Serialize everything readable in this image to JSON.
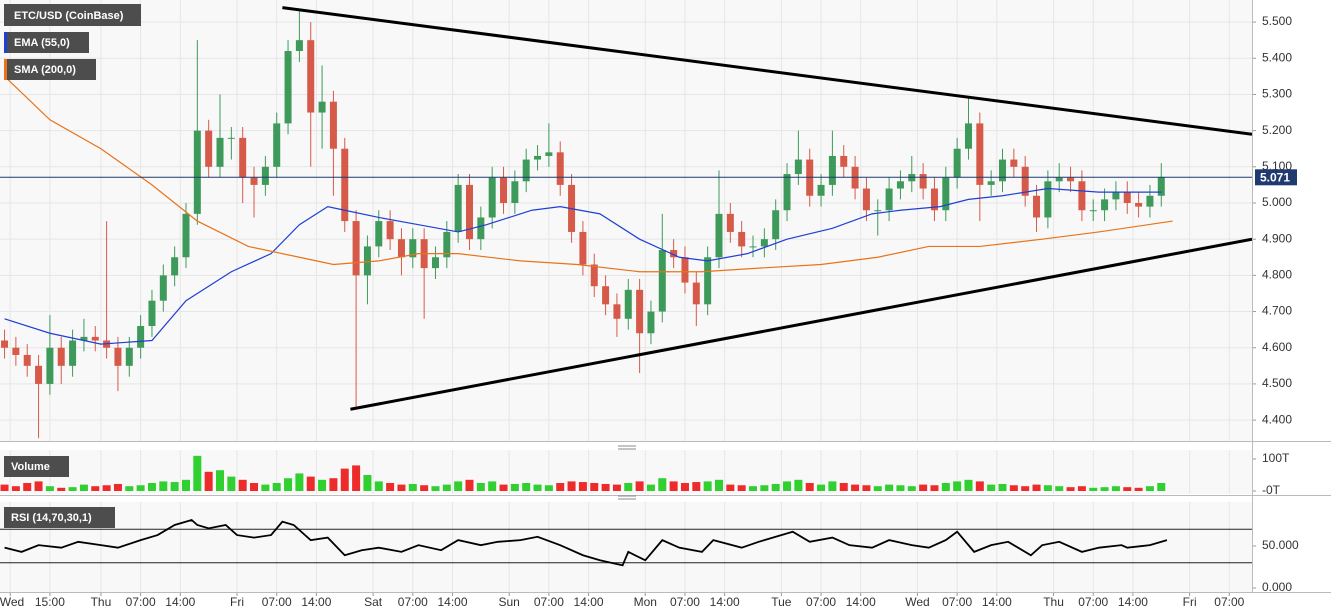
{
  "chart_data": [
    {
      "type": "candlestick",
      "title": "ETC/USD (CoinBase)",
      "xlim": [
        -17.8,
        203
      ],
      "ylim": [
        4.345,
        5.561
      ],
      "yticks": [
        {
          "value": 4.4,
          "label": "4.400"
        },
        {
          "value": 4.5,
          "label": "4.500"
        },
        {
          "value": 4.6,
          "label": "4.600"
        },
        {
          "value": 4.7,
          "label": "4.700"
        },
        {
          "value": 4.8,
          "label": "4.800"
        },
        {
          "value": 4.9,
          "label": "4.900"
        },
        {
          "value": 5.0,
          "label": "5.000"
        },
        {
          "value": 5.1,
          "label": "5.100"
        },
        {
          "value": 5.2,
          "label": "5.200"
        },
        {
          "value": 5.3,
          "label": "5.300"
        },
        {
          "value": 5.4,
          "label": "5.400"
        },
        {
          "value": 5.5,
          "label": "5.500"
        }
      ],
      "grid": true,
      "up_color": "#3d9a5b",
      "down_color": "#d65a4a",
      "x": [
        -17,
        -15,
        -13,
        -11,
        -9,
        -7,
        -5,
        -3,
        -1,
        1,
        3,
        5,
        7,
        9,
        11,
        13,
        15,
        17,
        19,
        21,
        23,
        25,
        27,
        29,
        31,
        33,
        35,
        37,
        39,
        41,
        43,
        45,
        47,
        49,
        51,
        53,
        55,
        57,
        59,
        61,
        63,
        65,
        67,
        69,
        71,
        73,
        75,
        77,
        79,
        81,
        83,
        85,
        87,
        89,
        91,
        93,
        95,
        97,
        99,
        101,
        103,
        105,
        107,
        109,
        111,
        113,
        115,
        117,
        119,
        121,
        123,
        125,
        127,
        129,
        131,
        133,
        135,
        137,
        139,
        141,
        143,
        145,
        147,
        149,
        151,
        153,
        155,
        157,
        159,
        161,
        163,
        165,
        167,
        169,
        171,
        173,
        175,
        177,
        179,
        181,
        183,
        185,
        187
      ],
      "open": [
        4.62,
        4.6,
        4.58,
        4.55,
        4.5,
        4.6,
        4.55,
        4.62,
        4.63,
        4.62,
        4.6,
        4.55,
        4.6,
        4.66,
        4.73,
        4.8,
        4.85,
        4.97,
        5.2,
        5.1,
        5.18,
        5.18,
        5.07,
        5.05,
        5.1,
        5.22,
        5.42,
        5.45,
        5.25,
        5.28,
        5.15,
        4.95,
        4.8,
        4.88,
        4.95,
        4.9,
        4.85,
        4.9,
        4.82,
        4.85,
        4.92,
        5.05,
        4.9,
        4.96,
        5.07,
        5.0,
        5.06,
        5.12,
        5.13,
        5.14,
        5.05,
        4.92,
        4.83,
        4.77,
        4.72,
        4.68,
        4.76,
        4.64,
        4.7,
        4.87,
        4.85,
        4.78,
        4.72,
        4.85,
        4.97,
        4.92,
        4.88,
        4.88,
        4.9,
        4.98,
        5.08,
        5.12,
        5.02,
        5.05,
        5.13,
        5.1,
        5.04,
        4.98,
        4.98,
        5.04,
        5.06,
        5.08,
        5.04,
        4.98,
        5.07,
        5.15,
        5.22,
        5.05,
        5.06,
        5.12,
        5.1,
        5.02,
        4.96,
        5.06,
        5.07,
        5.06,
        4.98,
        4.98,
        5.01,
        5.03,
        5.0,
        4.99,
        5.02
      ],
      "high": [
        4.65,
        4.63,
        4.61,
        4.58,
        4.69,
        4.63,
        4.65,
        4.68,
        4.66,
        4.95,
        4.63,
        4.63,
        4.69,
        4.76,
        4.83,
        4.88,
        5.0,
        5.45,
        5.23,
        5.3,
        5.21,
        5.21,
        5.1,
        5.13,
        5.25,
        5.45,
        5.53,
        5.5,
        5.38,
        5.31,
        5.18,
        4.98,
        4.91,
        4.98,
        4.98,
        4.93,
        4.93,
        4.93,
        4.88,
        4.95,
        5.08,
        5.08,
        4.99,
        5.1,
        5.1,
        5.09,
        5.15,
        5.16,
        5.22,
        5.17,
        5.08,
        4.95,
        4.86,
        4.8,
        4.75,
        4.79,
        4.79,
        4.73,
        4.97,
        4.9,
        4.88,
        4.81,
        4.88,
        5.09,
        5.0,
        4.95,
        4.91,
        4.93,
        5.01,
        5.11,
        5.2,
        5.15,
        5.08,
        5.2,
        5.16,
        5.13,
        5.07,
        5.01,
        5.07,
        5.09,
        5.13,
        5.11,
        5.07,
        5.1,
        5.18,
        5.29,
        5.25,
        5.09,
        5.15,
        5.15,
        5.13,
        5.05,
        5.09,
        5.11,
        5.1,
        5.09,
        5.01,
        5.04,
        5.06,
        5.06,
        5.03,
        5.05,
        5.11
      ],
      "low": [
        4.57,
        4.55,
        4.52,
        4.35,
        4.47,
        4.5,
        4.52,
        4.59,
        4.59,
        4.57,
        4.48,
        4.52,
        4.57,
        4.63,
        4.7,
        4.77,
        4.82,
        4.94,
        5.07,
        5.07,
        5.12,
        5.0,
        4.96,
        5.02,
        5.07,
        5.19,
        5.39,
        5.1,
        5.15,
        5.02,
        4.92,
        4.43,
        4.72,
        4.85,
        4.87,
        4.8,
        4.82,
        4.68,
        4.79,
        4.82,
        4.89,
        4.87,
        4.87,
        4.93,
        4.97,
        4.97,
        5.03,
        5.09,
        5.1,
        5.02,
        4.89,
        4.8,
        4.74,
        4.69,
        4.63,
        4.65,
        4.53,
        4.61,
        4.67,
        4.82,
        4.75,
        4.66,
        4.69,
        4.82,
        4.89,
        4.85,
        4.85,
        4.85,
        4.87,
        4.95,
        5.05,
        4.99,
        4.99,
        5.02,
        5.07,
        5.01,
        4.95,
        4.91,
        4.95,
        5.01,
        5.03,
        5.01,
        4.95,
        4.95,
        5.04,
        5.12,
        4.95,
        5.02,
        5.03,
        5.07,
        4.99,
        4.92,
        4.93,
        5.03,
        5.03,
        4.95,
        4.95,
        4.95,
        4.98,
        4.97,
        4.96,
        4.96,
        4.99
      ],
      "close": [
        4.6,
        4.58,
        4.55,
        4.5,
        4.6,
        4.55,
        4.62,
        4.63,
        4.62,
        4.6,
        4.55,
        4.6,
        4.66,
        4.73,
        4.8,
        4.85,
        4.97,
        5.2,
        5.1,
        5.18,
        5.18,
        5.07,
        5.05,
        5.1,
        5.22,
        5.42,
        5.45,
        5.25,
        5.28,
        5.15,
        4.95,
        4.8,
        4.88,
        4.95,
        4.9,
        4.85,
        4.9,
        4.82,
        4.85,
        4.92,
        5.05,
        4.9,
        4.96,
        5.07,
        5.0,
        5.06,
        5.12,
        5.13,
        5.14,
        5.05,
        4.92,
        4.83,
        4.77,
        4.72,
        4.68,
        4.76,
        4.64,
        4.7,
        4.87,
        4.85,
        4.78,
        4.72,
        4.85,
        4.97,
        4.92,
        4.88,
        4.88,
        4.9,
        4.98,
        5.08,
        5.12,
        5.02,
        5.05,
        5.13,
        5.1,
        5.04,
        4.98,
        4.98,
        5.04,
        5.06,
        5.08,
        5.04,
        4.98,
        5.07,
        5.15,
        5.22,
        5.05,
        5.06,
        5.12,
        5.1,
        5.02,
        4.96,
        5.06,
        5.07,
        5.06,
        4.98,
        4.98,
        5.01,
        5.03,
        5.0,
        4.99,
        5.02,
        5.071
      ],
      "series": [
        {
          "name": "EMA (55,0)",
          "color": "#1f3fd6",
          "x": [
            -17,
            -9,
            0,
            9,
            15,
            23,
            30,
            35,
            40,
            43,
            49,
            56,
            63,
            68,
            76,
            81,
            88,
            95,
            102,
            107,
            114,
            121,
            129,
            136,
            141,
            148,
            153,
            159,
            167,
            176,
            187
          ],
          "values": [
            4.68,
            4.64,
            4.61,
            4.62,
            4.73,
            4.81,
            4.86,
            4.94,
            4.99,
            4.98,
            4.96,
            4.94,
            4.92,
            4.94,
            4.98,
            4.99,
            4.97,
            4.9,
            4.85,
            4.84,
            4.86,
            4.9,
            4.93,
            4.97,
            4.98,
            4.99,
            5.01,
            5.02,
            5.04,
            5.03,
            5.03
          ]
        },
        {
          "name": "SMA (200,0)",
          "color": "#e8731a",
          "x": [
            -17,
            -9,
            0,
            9,
            17,
            26,
            35,
            41,
            49,
            56,
            63,
            74,
            84,
            95,
            106,
            116,
            127,
            137,
            146,
            155,
            166,
            176,
            189
          ],
          "values": [
            5.35,
            5.23,
            5.15,
            5.05,
            4.95,
            4.88,
            4.85,
            4.83,
            4.84,
            4.86,
            4.86,
            4.84,
            4.83,
            4.81,
            4.81,
            4.82,
            4.83,
            4.85,
            4.88,
            4.88,
            4.9,
            4.92,
            4.95
          ]
        }
      ],
      "trendlines": [
        {
          "x": [
            32,
            203
          ],
          "values": [
            5.54,
            5.19
          ]
        },
        {
          "x": [
            44,
            203
          ],
          "values": [
            4.43,
            4.9
          ]
        }
      ],
      "last_price": 5.071
    },
    {
      "type": "bar",
      "title": "Volume",
      "xlim": [
        -17.8,
        203
      ],
      "ylim": [
        0,
        122
      ],
      "yticks": [
        {
          "value": 100,
          "label": "100T"
        },
        {
          "value": 0,
          "label": "-0T"
        }
      ],
      "up_color": "#2fd02f",
      "down_color": "#ee2b2b",
      "values": [
        20,
        15,
        25,
        30,
        15,
        10,
        12,
        20,
        15,
        18,
        22,
        15,
        18,
        25,
        30,
        28,
        35,
        110,
        60,
        65,
        45,
        35,
        25,
        20,
        25,
        40,
        55,
        45,
        35,
        40,
        70,
        80,
        50,
        30,
        25,
        20,
        22,
        18,
        15,
        20,
        30,
        35,
        25,
        30,
        20,
        22,
        25,
        20,
        18,
        25,
        30,
        28,
        25,
        22,
        20,
        25,
        30,
        20,
        40,
        30,
        25,
        28,
        30,
        35,
        20,
        18,
        15,
        18,
        22,
        30,
        35,
        25,
        20,
        30,
        25,
        20,
        18,
        15,
        20,
        18,
        15,
        20,
        18,
        25,
        30,
        35,
        30,
        20,
        22,
        18,
        15,
        20,
        18,
        15,
        12,
        15,
        10,
        12,
        15,
        12,
        10,
        15,
        25
      ]
    },
    {
      "type": "line",
      "title": "RSI (14,70,30,1)",
      "xlim": [
        -17.8,
        203
      ],
      "ylim": [
        0,
        100
      ],
      "yticks": [
        {
          "value": 0,
          "label": "0.000"
        },
        {
          "value": 50,
          "label": "50.000"
        }
      ],
      "levels": [
        70,
        30
      ],
      "xticks": [
        {
          "value": -16,
          "label": "Wed"
        },
        {
          "value": -9,
          "label": "15:00"
        },
        {
          "value": 0,
          "label": "Thu"
        },
        {
          "value": 7,
          "label": "07:00"
        },
        {
          "value": 14,
          "label": "14:00"
        },
        {
          "value": 24,
          "label": "Fri"
        },
        {
          "value": 31,
          "label": "07:00"
        },
        {
          "value": 38,
          "label": "14:00"
        },
        {
          "value": 48,
          "label": "Sat"
        },
        {
          "value": 55,
          "label": "07:00"
        },
        {
          "value": 62,
          "label": "14:00"
        },
        {
          "value": 72,
          "label": "Sun"
        },
        {
          "value": 79,
          "label": "07:00"
        },
        {
          "value": 86,
          "label": "14:00"
        },
        {
          "value": 96,
          "label": "Mon"
        },
        {
          "value": 103,
          "label": "07:00"
        },
        {
          "value": 110,
          "label": "14:00"
        },
        {
          "value": 120,
          "label": "Tue"
        },
        {
          "value": 127,
          "label": "07:00"
        },
        {
          "value": 134,
          "label": "14:00"
        },
        {
          "value": 144,
          "label": "Wed"
        },
        {
          "value": 151,
          "label": "07:00"
        },
        {
          "value": 158,
          "label": "14:00"
        },
        {
          "value": 168,
          "label": "Thu"
        },
        {
          "value": 175,
          "label": "07:00"
        },
        {
          "value": 182,
          "label": "14:00"
        },
        {
          "value": 192,
          "label": "Fri"
        },
        {
          "value": 199,
          "label": "07:00"
        }
      ],
      "series": [
        {
          "color": "#000000",
          "x": [
            -17,
            -14,
            -11,
            -7,
            -4,
            0,
            3,
            7,
            10,
            13,
            16,
            17,
            19,
            22,
            24,
            27,
            30,
            32,
            34,
            37,
            40,
            43,
            46,
            49,
            53,
            56,
            60,
            63,
            67,
            70,
            74,
            77,
            81,
            85,
            88,
            92,
            93,
            96,
            99,
            102,
            106,
            108,
            113,
            116,
            122,
            125,
            129,
            132,
            136,
            139,
            143,
            146,
            149,
            151,
            154,
            157,
            160,
            164,
            166,
            169,
            173,
            176,
            180,
            181,
            185,
            188
          ],
          "values": [
            48,
            43,
            51,
            48,
            55,
            51,
            48,
            57,
            63,
            75,
            81,
            75,
            71,
            75,
            63,
            60,
            63,
            79,
            75,
            57,
            60,
            39,
            45,
            48,
            43,
            51,
            45,
            57,
            51,
            55,
            57,
            61,
            51,
            39,
            33,
            27,
            43,
            33,
            57,
            48,
            43,
            57,
            48,
            55,
            67,
            55,
            60,
            51,
            48,
            57,
            51,
            48,
            57,
            67,
            43,
            51,
            55,
            39,
            51,
            55,
            43,
            48,
            51,
            48,
            51,
            57
          ]
        }
      ]
    }
  ]
}
